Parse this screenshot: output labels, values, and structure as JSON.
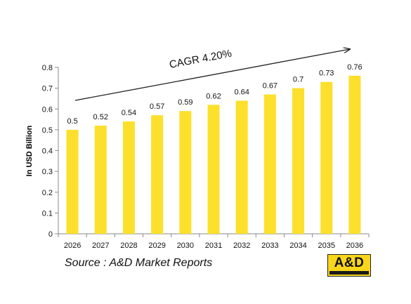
{
  "chart_data": {
    "type": "bar",
    "categories": [
      "2026",
      "2027",
      "2028",
      "2029",
      "2030",
      "2031",
      "2032",
      "2033",
      "2034",
      "2035",
      "2036"
    ],
    "values": [
      0.5,
      0.52,
      0.54,
      0.57,
      0.59,
      0.62,
      0.64,
      0.67,
      0.7,
      0.73,
      0.76
    ],
    "data_labels": [
      "0.5",
      "0.52",
      "0.54",
      "0.57",
      "0.59",
      "0.62",
      "0.64",
      "0.67",
      "0.7",
      "0.73",
      "0.76"
    ],
    "title": "",
    "xlabel": "",
    "ylabel": "In USD Billion",
    "ylim": [
      0,
      0.8
    ],
    "yticks": [
      0,
      0.1,
      0.2,
      0.3,
      0.4,
      0.5,
      0.6,
      0.7,
      0.8
    ],
    "ytick_labels": [
      "0",
      "0.1",
      "0.2",
      "0.3",
      "0.4",
      "0.5",
      "0.6",
      "0.7",
      "0.8"
    ],
    "grid": false,
    "legend": "none",
    "bar_color": "#fce02b",
    "annotation": {
      "text": "CAGR 4.20%",
      "arrow": "upward trend arrow from 2026 to 2036"
    }
  },
  "source": "Source : A&D Market Reports",
  "logo": {
    "text": "A&D",
    "background": "#f8d61b"
  }
}
